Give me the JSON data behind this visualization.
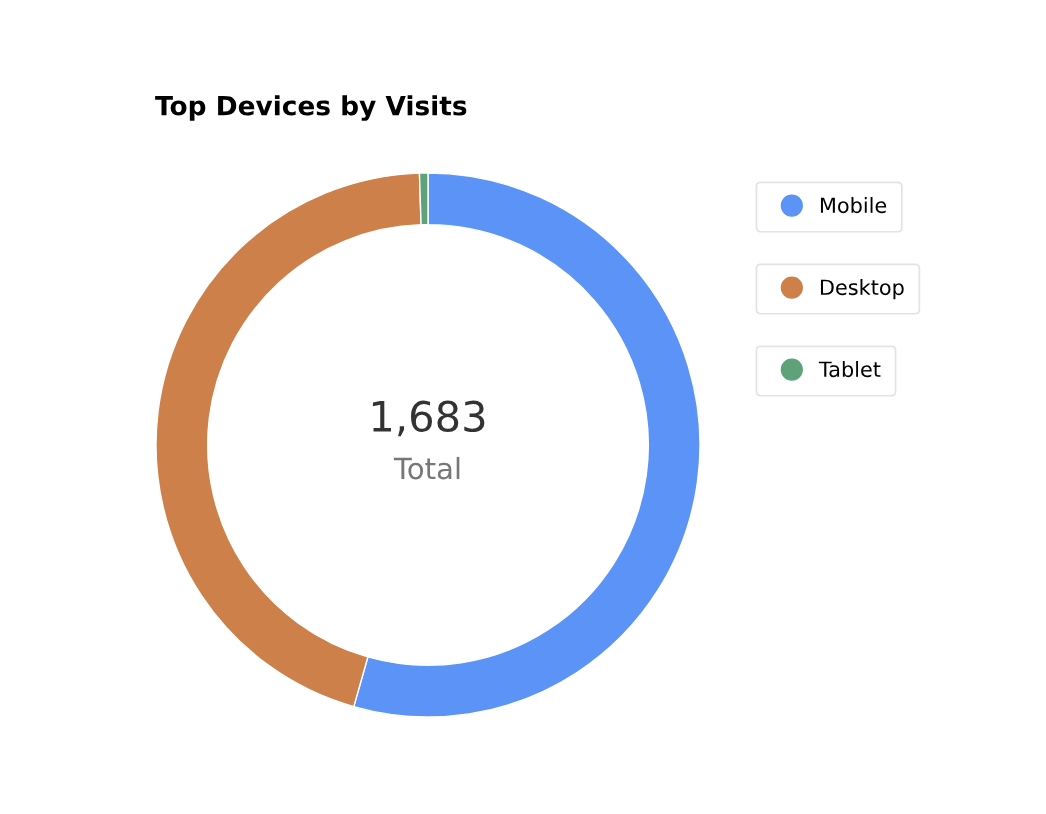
{
  "chart_data": {
    "type": "donut",
    "title": "Top Devices by Visits",
    "categories": [
      "Mobile",
      "Desktop",
      "Tablet"
    ],
    "values": [
      54.4,
      45.1,
      0.5
    ],
    "colors": [
      "#5b93f7",
      "#cd8049",
      "#5fa27a"
    ],
    "annotations": [
      "1,683",
      "Total"
    ],
    "legend": "top right"
  }
}
